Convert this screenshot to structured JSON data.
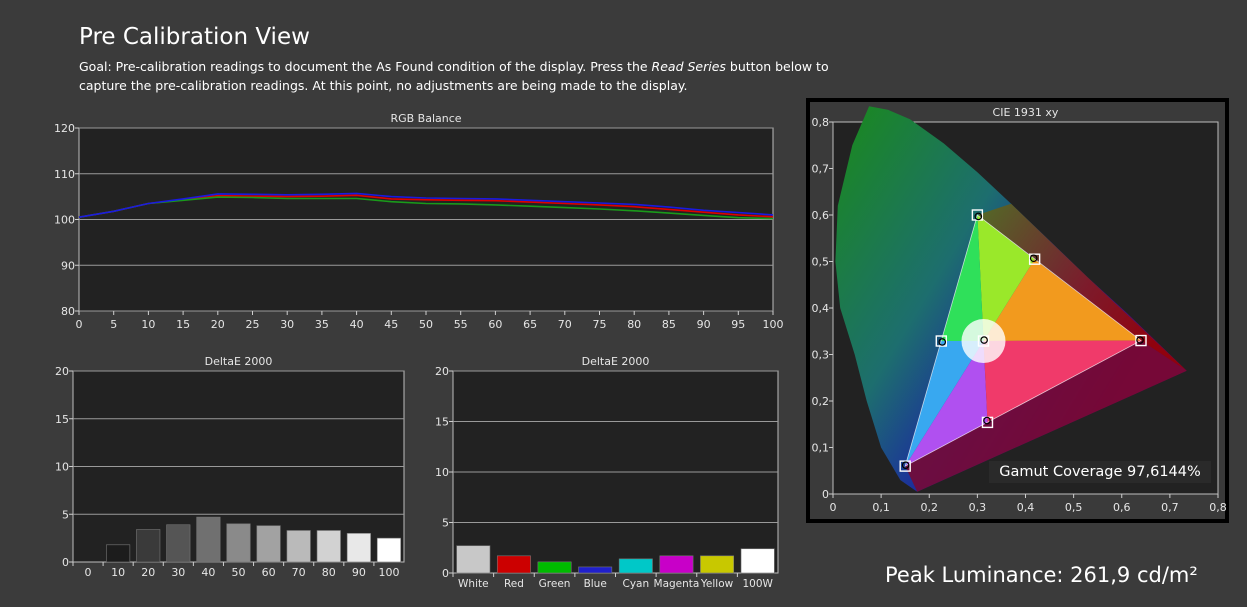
{
  "header": {
    "title": "Pre Calibration View",
    "goal_prefix": "Goal: Pre-calibration readings to document the As Found condition of the display. Press the ",
    "goal_emph": "Read Series",
    "goal_suffix": " button below to capture the pre-calibration readings. At this point, no adjustments are being made to the display."
  },
  "colors": {
    "red_series": "#e00000",
    "green_series": "#1a9a1a",
    "blue_series": "#1a1ae0",
    "plot_bg": "#222222",
    "grid": "#9a9a9a"
  },
  "footer": {
    "peak_luminance": "Peak Luminance: 261,9 cd/m²"
  },
  "chart_data": [
    {
      "id": "rgb",
      "type": "line",
      "title": "RGB Balance",
      "x": [
        0,
        5,
        10,
        15,
        20,
        25,
        30,
        35,
        40,
        45,
        50,
        55,
        60,
        65,
        70,
        75,
        80,
        85,
        90,
        95,
        100
      ],
      "xticks": [
        "0",
        "5",
        "10",
        "15",
        "20",
        "25",
        "30",
        "35",
        "40",
        "45",
        "50",
        "55",
        "60",
        "65",
        "70",
        "75",
        "80",
        "85",
        "90",
        "95",
        "100"
      ],
      "ylim": [
        80,
        120
      ],
      "yticks": [
        "80",
        "90",
        "100",
        "110",
        "120"
      ],
      "grid": true,
      "series": [
        {
          "color": "#e00000",
          "values": [
            100.5,
            101.8,
            103.5,
            104.3,
            105.2,
            105.1,
            105.0,
            105.1,
            105.3,
            104.5,
            104.3,
            104.2,
            104.1,
            103.8,
            103.5,
            103.2,
            102.8,
            102.2,
            101.6,
            101.0,
            100.6
          ]
        },
        {
          "color": "#1a9a1a",
          "values": [
            100.5,
            101.8,
            103.5,
            104.2,
            104.9,
            104.8,
            104.6,
            104.6,
            104.6,
            103.9,
            103.5,
            103.4,
            103.2,
            102.9,
            102.6,
            102.3,
            101.9,
            101.4,
            100.9,
            100.4,
            100.2
          ]
        },
        {
          "color": "#1a1ae0",
          "values": [
            100.5,
            101.8,
            103.5,
            104.5,
            105.6,
            105.5,
            105.4,
            105.5,
            105.7,
            105.0,
            104.7,
            104.6,
            104.5,
            104.2,
            103.9,
            103.6,
            103.3,
            102.7,
            102.0,
            101.5,
            101.0
          ]
        }
      ]
    },
    {
      "id": "grey",
      "type": "bar",
      "title": "DeltaE 2000",
      "categories": [
        "0",
        "10",
        "20",
        "30",
        "40",
        "50",
        "60",
        "70",
        "80",
        "90",
        "100"
      ],
      "values": [
        0,
        1.8,
        3.4,
        3.9,
        4.7,
        4.0,
        3.8,
        3.3,
        3.3,
        3.0,
        2.5
      ],
      "bar_colors": [
        "#000000",
        "#1c1c1c",
        "#3a3a3a",
        "#555555",
        "#707070",
        "#8a8a8a",
        "#a2a2a2",
        "#bababa",
        "#d2d2d2",
        "#e8e8e8",
        "#ffffff"
      ],
      "ylim": [
        0,
        20
      ],
      "yticks": [
        "0",
        "5",
        "10",
        "15",
        "20"
      ],
      "grid": true
    },
    {
      "id": "color",
      "type": "bar",
      "title": "DeltaE 2000",
      "categories": [
        "White",
        "Red",
        "Green",
        "Blue",
        "Cyan",
        "Magenta",
        "Yellow",
        "100W"
      ],
      "values": [
        2.7,
        1.7,
        1.1,
        0.6,
        1.4,
        1.7,
        1.7,
        2.4
      ],
      "bar_colors": [
        "#c8c8c8",
        "#cc0000",
        "#00bb00",
        "#2020cc",
        "#00c8c8",
        "#c800c8",
        "#c8c800",
        "#ffffff"
      ],
      "ylim": [
        0,
        20
      ],
      "yticks": [
        "0",
        "5",
        "10",
        "15",
        "20"
      ],
      "grid": true
    },
    {
      "id": "cie",
      "type": "scatter",
      "title": "CIE 1931 xy",
      "xlim": [
        0,
        0.8
      ],
      "ylim": [
        0,
        0.8
      ],
      "xticks": [
        "0",
        "0,1",
        "0,2",
        "0,3",
        "0,4",
        "0,5",
        "0,6",
        "0,7",
        "0,8"
      ],
      "yticks": [
        "0",
        "0,1",
        "0,2",
        "0,3",
        "0,4",
        "0,5",
        "0,6",
        "0,7",
        "0,8"
      ],
      "gamut_coverage": "Gamut Coverage 97,6144%",
      "targets": [
        [
          0.64,
          0.33
        ],
        [
          0.3,
          0.6
        ],
        [
          0.15,
          0.06
        ],
        [
          0.225,
          0.329
        ],
        [
          0.321,
          0.154
        ],
        [
          0.419,
          0.505
        ],
        [
          0.3127,
          0.329
        ]
      ],
      "measured": [
        [
          0.638,
          0.331
        ],
        [
          0.302,
          0.597
        ],
        [
          0.151,
          0.062
        ],
        [
          0.227,
          0.327
        ],
        [
          0.32,
          0.158
        ],
        [
          0.417,
          0.507
        ],
        [
          0.314,
          0.331
        ]
      ]
    }
  ]
}
